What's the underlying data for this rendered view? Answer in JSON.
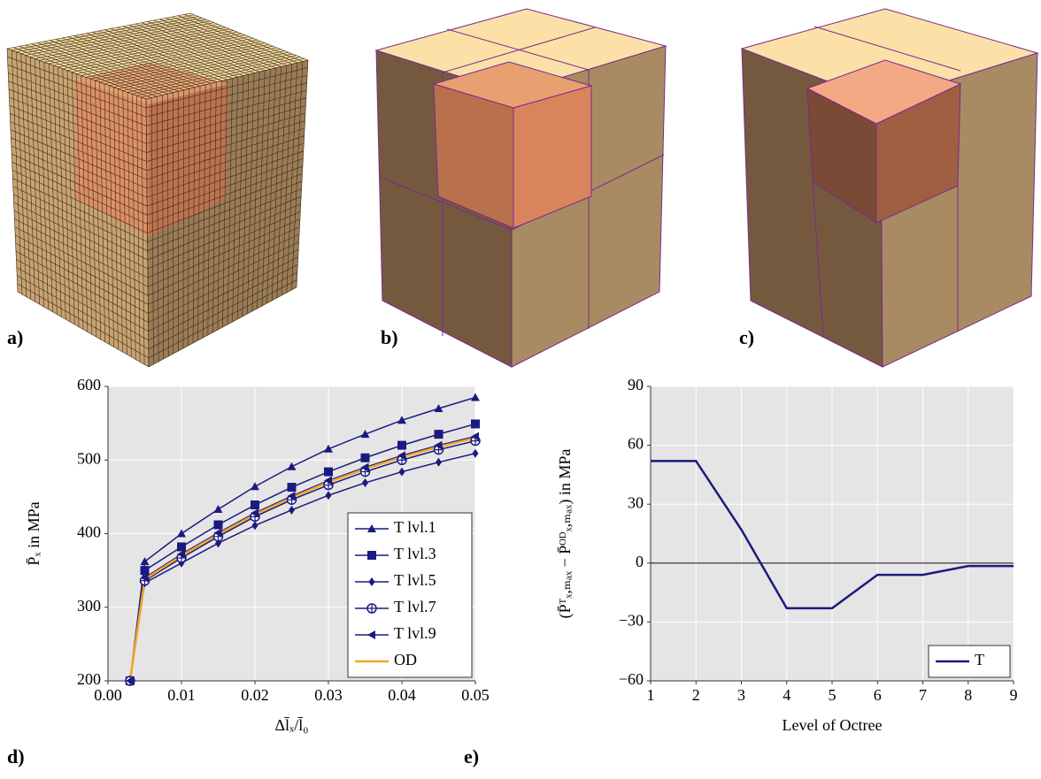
{
  "panel_labels": [
    "a)",
    "b)",
    "c)",
    "d)",
    "e)"
  ],
  "chart_data": [
    {
      "type": "line",
      "xlabel": "Δl̄ₓ/l̄₀",
      "ylabel": "P̄ₓ in MPa",
      "x": [
        0.003,
        0.005,
        0.01,
        0.015,
        0.02,
        0.025,
        0.03,
        0.035,
        0.04,
        0.045,
        0.05
      ],
      "xlim": [
        0,
        0.05
      ],
      "ylim": [
        200,
        600
      ],
      "xticks": [
        {
          "value": 0,
          "label": "0.00"
        },
        0.01,
        0.02,
        0.03,
        0.04,
        0.05
      ],
      "yticks": [
        200,
        300,
        400,
        500,
        600
      ],
      "grid": true,
      "legend": "lower right",
      "series": [
        {
          "name": "T lvl.1",
          "color": "#1a1a80",
          "marker": "triangle",
          "values": [
            200,
            362,
            400,
            433,
            464,
            491,
            515,
            535,
            554,
            570,
            585
          ]
        },
        {
          "name": "T lvl.3",
          "color": "#1a1a80",
          "marker": "square",
          "values": [
            200,
            350,
            382,
            412,
            439,
            463,
            484,
            503,
            520,
            535,
            549
          ]
        },
        {
          "name": "T lvl.5",
          "color": "#1a1a80",
          "marker": "diamond",
          "values": [
            200,
            333,
            360,
            387,
            411,
            432,
            452,
            469,
            484,
            497,
            509
          ]
        },
        {
          "name": "T lvl.7",
          "color": "#1a1a80",
          "marker": "oplus",
          "values": [
            200,
            336,
            367,
            396,
            423,
            446,
            466,
            484,
            500,
            514,
            526
          ]
        },
        {
          "name": "T lvl.9",
          "color": "#1a1a80",
          "marker": "triangle-left",
          "values": [
            200,
            340,
            372,
            401,
            428,
            451,
            472,
            490,
            506,
            520,
            532
          ]
        },
        {
          "name": "OD",
          "color": "#f5a623",
          "marker": "none",
          "values": [
            200,
            338,
            370,
            399,
            426,
            449,
            470,
            488,
            504,
            518,
            530
          ]
        }
      ]
    },
    {
      "type": "line",
      "xlabel": "Level of Octree",
      "ylabel": "(P̄ᵀₓ,ₘₐₓ − P̄ᴼᴰₓ,ₘₐₓ) in MPa",
      "x": [
        1,
        2,
        3,
        4,
        5,
        6,
        7,
        8,
        9
      ],
      "xlim": [
        1,
        9
      ],
      "ylim": [
        -60,
        90
      ],
      "xticks": [
        1,
        2,
        3,
        4,
        5,
        6,
        7,
        8,
        9
      ],
      "yticks": [
        {
          "value": -60,
          "label": "−60"
        },
        {
          "value": -30,
          "label": "−30"
        },
        0,
        30,
        60,
        90
      ],
      "grid": true,
      "legend": "lower right",
      "zero_line": true,
      "series": [
        {
          "name": "T",
          "color": "#1a1a80",
          "marker": "none",
          "values": [
            52,
            52,
            17,
            -23,
            -23,
            -6,
            -6,
            -1.5,
            -1.5
          ]
        }
      ]
    }
  ]
}
